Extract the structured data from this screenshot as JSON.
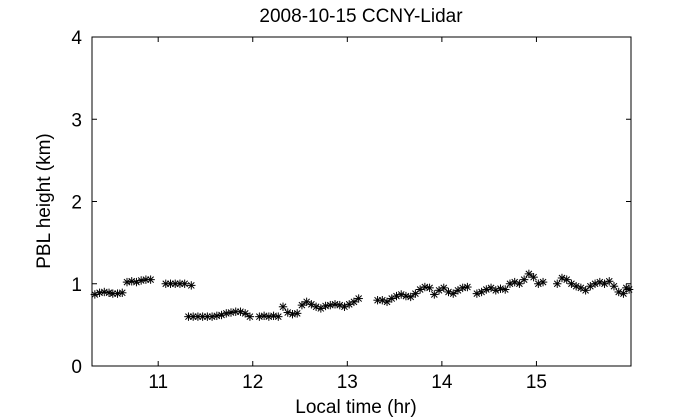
{
  "chart_data": {
    "type": "scatter",
    "title": "2008-10-15 CCNY-Lidar",
    "xlabel": "Local time (hr)",
    "ylabel": "PBL height (km)",
    "xlim": [
      10.3,
      16.0
    ],
    "ylim": [
      0,
      4
    ],
    "xticks": [
      11,
      12,
      13,
      14,
      15
    ],
    "yticks": [
      0,
      1,
      2,
      3,
      4
    ],
    "grid": false,
    "marker": "asterisk",
    "marker_color": "#000000",
    "series": [
      {
        "points": [
          [
            10.33,
            0.87
          ],
          [
            10.38,
            0.89
          ],
          [
            10.43,
            0.9
          ],
          [
            10.48,
            0.89
          ],
          [
            10.52,
            0.88
          ],
          [
            10.57,
            0.88
          ],
          [
            10.62,
            0.89
          ],
          [
            10.67,
            1.02
          ],
          [
            10.72,
            1.03
          ],
          [
            10.77,
            1.02
          ],
          [
            10.82,
            1.04
          ],
          [
            10.87,
            1.05
          ],
          [
            10.92,
            1.05
          ],
          [
            11.08,
            1.0
          ],
          [
            11.13,
            1.0
          ],
          [
            11.18,
            1.0
          ],
          [
            11.23,
            1.0
          ],
          [
            11.28,
            1.0
          ],
          [
            11.35,
            0.98
          ],
          [
            11.32,
            0.6
          ],
          [
            11.37,
            0.6
          ],
          [
            11.42,
            0.6
          ],
          [
            11.47,
            0.6
          ],
          [
            11.52,
            0.6
          ],
          [
            11.57,
            0.6
          ],
          [
            11.62,
            0.61
          ],
          [
            11.67,
            0.62
          ],
          [
            11.72,
            0.64
          ],
          [
            11.77,
            0.65
          ],
          [
            11.82,
            0.66
          ],
          [
            11.87,
            0.66
          ],
          [
            11.92,
            0.64
          ],
          [
            11.97,
            0.6
          ],
          [
            12.07,
            0.6
          ],
          [
            12.12,
            0.61
          ],
          [
            12.17,
            0.6
          ],
          [
            12.22,
            0.61
          ],
          [
            12.27,
            0.6
          ],
          [
            12.32,
            0.72
          ],
          [
            12.37,
            0.65
          ],
          [
            12.42,
            0.63
          ],
          [
            12.47,
            0.64
          ],
          [
            12.52,
            0.74
          ],
          [
            12.57,
            0.78
          ],
          [
            12.62,
            0.75
          ],
          [
            12.67,
            0.72
          ],
          [
            12.72,
            0.7
          ],
          [
            12.77,
            0.73
          ],
          [
            12.82,
            0.74
          ],
          [
            12.87,
            0.75
          ],
          [
            12.92,
            0.74
          ],
          [
            12.97,
            0.72
          ],
          [
            13.02,
            0.75
          ],
          [
            13.07,
            0.78
          ],
          [
            13.12,
            0.82
          ],
          [
            13.32,
            0.8
          ],
          [
            13.37,
            0.8
          ],
          [
            13.42,
            0.78
          ],
          [
            13.47,
            0.82
          ],
          [
            13.52,
            0.85
          ],
          [
            13.57,
            0.87
          ],
          [
            13.62,
            0.85
          ],
          [
            13.67,
            0.84
          ],
          [
            13.72,
            0.88
          ],
          [
            13.77,
            0.93
          ],
          [
            13.82,
            0.96
          ],
          [
            13.87,
            0.95
          ],
          [
            13.92,
            0.87
          ],
          [
            13.97,
            0.92
          ],
          [
            14.02,
            0.95
          ],
          [
            14.07,
            0.9
          ],
          [
            14.12,
            0.88
          ],
          [
            14.17,
            0.92
          ],
          [
            14.22,
            0.95
          ],
          [
            14.27,
            0.96
          ],
          [
            14.37,
            0.88
          ],
          [
            14.42,
            0.9
          ],
          [
            14.47,
            0.93
          ],
          [
            14.52,
            0.95
          ],
          [
            14.57,
            0.92
          ],
          [
            14.62,
            0.94
          ],
          [
            14.67,
            0.93
          ],
          [
            14.72,
            1.0
          ],
          [
            14.77,
            1.02
          ],
          [
            14.82,
            1.0
          ],
          [
            14.87,
            1.05
          ],
          [
            14.92,
            1.12
          ],
          [
            14.97,
            1.08
          ],
          [
            15.02,
            1.0
          ],
          [
            15.07,
            1.02
          ],
          [
            15.22,
            1.0
          ],
          [
            15.27,
            1.07
          ],
          [
            15.32,
            1.05
          ],
          [
            15.37,
            1.0
          ],
          [
            15.42,
            0.97
          ],
          [
            15.47,
            0.95
          ],
          [
            15.52,
            0.92
          ],
          [
            15.57,
            0.97
          ],
          [
            15.62,
            1.0
          ],
          [
            15.67,
            1.02
          ],
          [
            15.72,
            1.0
          ],
          [
            15.77,
            1.03
          ],
          [
            15.82,
            0.97
          ],
          [
            15.87,
            0.9
          ],
          [
            15.92,
            0.88
          ],
          [
            15.95,
            0.95
          ],
          [
            15.98,
            0.93
          ]
        ]
      }
    ]
  }
}
